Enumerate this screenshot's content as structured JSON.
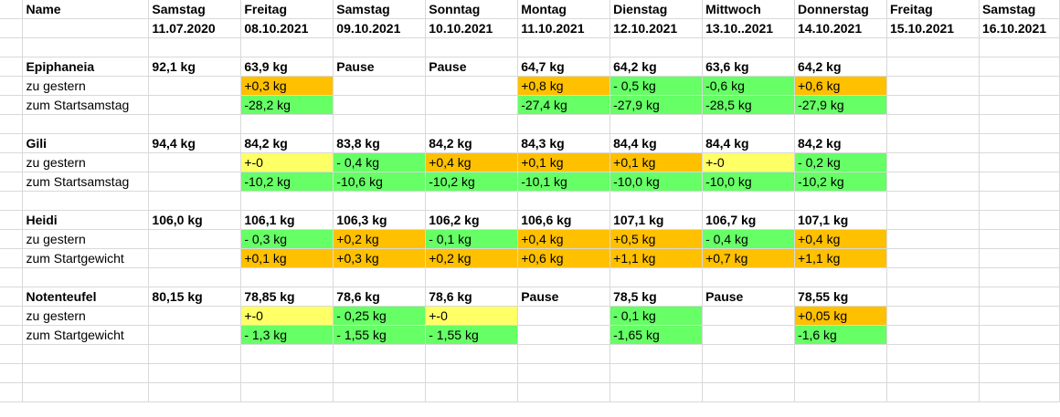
{
  "header": {
    "row1": [
      "Name",
      "Samstag",
      "Freitag",
      "Samstag",
      "Sonntag",
      "Montag",
      "Dienstag",
      "Mittwoch",
      "Donnerstag",
      "Freitag",
      "Samstag"
    ],
    "row2": [
      "",
      "11.07.2020",
      "08.10.2021",
      "09.10.2021",
      "10.10.2021",
      "11.10.2021",
      "12.10.2021",
      "13.10..2021",
      "14.10.2021",
      "15.10.2021",
      "16.10.2021"
    ]
  },
  "colors": {
    "increase": "#ffc000",
    "decrease": "#66ff66",
    "neutral": "#ffff66"
  },
  "people": [
    {
      "rows": [
        {
          "bold": true,
          "cells": [
            "Epiphaneia",
            "92,1 kg",
            "63,9 kg",
            "Pause",
            "Pause",
            "64,7 kg",
            "64,2 kg",
            "63,6 kg",
            "64,2 kg",
            "",
            ""
          ],
          "fills": [
            "",
            "",
            "",
            "",
            "",
            "",
            "",
            "",
            "",
            "",
            ""
          ]
        },
        {
          "bold": false,
          "cells": [
            "zu gestern",
            "",
            "+0,3 kg",
            "",
            "",
            "+0,8 kg",
            "- 0,5 kg",
            "-0,6 kg",
            "+0,6 kg",
            "",
            ""
          ],
          "fills": [
            "",
            "",
            "orange",
            "",
            "",
            "orange",
            "green",
            "green",
            "orange",
            "",
            ""
          ]
        },
        {
          "bold": false,
          "cells": [
            "zum Startsamstag",
            "",
            "-28,2 kg",
            "",
            "",
            "-27,4 kg",
            "-27,9 kg",
            "-28,5 kg",
            "-27,9 kg",
            "",
            ""
          ],
          "fills": [
            "",
            "",
            "green",
            "",
            "",
            "green",
            "green",
            "green",
            "green",
            "",
            ""
          ]
        }
      ]
    },
    {
      "rows": [
        {
          "bold": true,
          "cells": [
            "Gili",
            "94,4 kg",
            "84,2 kg",
            "83,8 kg",
            "84,2 kg",
            "84,3 kg",
            "84,4 kg",
            "84,4 kg",
            "84,2 kg",
            "",
            ""
          ],
          "fills": [
            "",
            "",
            "",
            "",
            "",
            "",
            "",
            "",
            "",
            "",
            ""
          ]
        },
        {
          "bold": false,
          "cells": [
            "zu gestern",
            "",
            "+-0",
            "- 0,4 kg",
            "+0,4 kg",
            "+0,1 kg",
            "+0,1 kg",
            "+-0",
            "- 0,2 kg",
            "",
            ""
          ],
          "fills": [
            "",
            "",
            "yellow",
            "green",
            "orange",
            "orange",
            "orange",
            "yellow",
            "green",
            "",
            ""
          ]
        },
        {
          "bold": false,
          "cells": [
            "zum Startsamstag",
            "",
            "-10,2 kg",
            "-10,6 kg",
            "-10,2 kg",
            "-10,1 kg",
            "-10,0 kg",
            "-10,0 kg",
            "-10,2 kg",
            "",
            ""
          ],
          "fills": [
            "",
            "",
            "green",
            "green",
            "green",
            "green",
            "green",
            "green",
            "green",
            "",
            ""
          ]
        }
      ]
    },
    {
      "rows": [
        {
          "bold": true,
          "cells": [
            "Heidi",
            "106,0 kg",
            "106,1 kg",
            "106,3 kg",
            "106,2 kg",
            "106,6 kg",
            "107,1 kg",
            "106,7 kg",
            "107,1 kg",
            "",
            ""
          ],
          "fills": [
            "",
            "",
            "",
            "",
            "",
            "",
            "",
            "",
            "",
            "",
            ""
          ]
        },
        {
          "bold": false,
          "cells": [
            "zu gestern",
            "",
            "- 0,3 kg",
            "+0,2 kg",
            "- 0,1 kg",
            "+0,4 kg",
            "+0,5 kg",
            "- 0,4 kg",
            "+0,4 kg",
            "",
            ""
          ],
          "fills": [
            "",
            "",
            "green",
            "orange",
            "green",
            "orange",
            "orange",
            "green",
            "orange",
            "",
            ""
          ]
        },
        {
          "bold": false,
          "cells": [
            "zum Startgewicht",
            "",
            "+0,1 kg",
            "+0,3 kg",
            "+0,2 kg",
            "+0,6 kg",
            "+1,1 kg",
            "+0,7 kg",
            "+1,1 kg",
            "",
            ""
          ],
          "fills": [
            "",
            "",
            "orange",
            "orange",
            "orange",
            "orange",
            "orange",
            "orange",
            "orange",
            "",
            ""
          ]
        }
      ]
    },
    {
      "rows": [
        {
          "bold": true,
          "cells": [
            "Notenteufel",
            "80,15 kg",
            "78,85 kg",
            "78,6 kg",
            "78,6 kg",
            "Pause",
            "78,5 kg",
            "Pause",
            "78,55 kg",
            "",
            ""
          ],
          "fills": [
            "",
            "",
            "",
            "",
            "",
            "",
            "",
            "",
            "",
            "",
            ""
          ]
        },
        {
          "bold": false,
          "cells": [
            "zu gestern",
            "",
            "+-0",
            "- 0,25 kg",
            "+-0",
            "",
            "- 0,1 kg",
            "",
            "+0,05 kg",
            "",
            ""
          ],
          "fills": [
            "",
            "",
            "yellow",
            "green",
            "yellow",
            "",
            "green",
            "",
            "orange",
            "",
            ""
          ]
        },
        {
          "bold": false,
          "cells": [
            "zum Startgewicht",
            "",
            "- 1,3 kg",
            "- 1,55 kg",
            "- 1,55 kg",
            "",
            "-1,65 kg",
            "",
            "-1,6 kg",
            "",
            ""
          ],
          "fills": [
            "",
            "",
            "green",
            "green",
            "green",
            "",
            "green",
            "",
            "green",
            "",
            ""
          ]
        }
      ]
    }
  ]
}
